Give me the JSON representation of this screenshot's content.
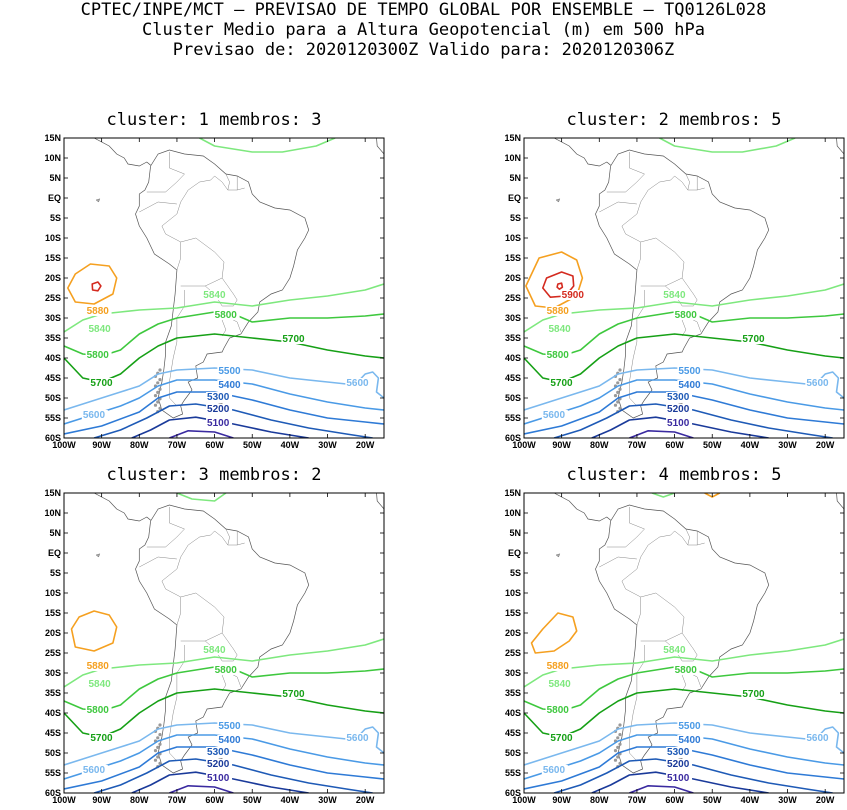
{
  "header": {
    "line1": "CPTEC/INPE/MCT – PREVISAO DE TEMPO GLOBAL POR ENSEMBLE – TQ0126L028",
    "line2": "Cluster Medio para a Altura Geopotencial (m) em 500 hPa",
    "line3": "Previsao de: 2020120300Z   Valido para: 2020120306Z"
  },
  "axes": {
    "lat_labels": [
      "15N",
      "10N",
      "5N",
      "EQ",
      "5S",
      "10S",
      "15S",
      "20S",
      "25S",
      "30S",
      "35S",
      "40S",
      "45S",
      "50S",
      "55S",
      "60S"
    ],
    "lon_labels": [
      "100W",
      "90W",
      "80W",
      "70W",
      "60W",
      "50W",
      "40W",
      "30W",
      "20W"
    ]
  },
  "colors": {
    "c5900": "#d42a1f",
    "c5880": "#f5a020",
    "c5840": "#7ee87e",
    "c5800": "#3ec83e",
    "c5700": "#16a016",
    "c5600": "#7ab8ee",
    "c5500": "#4a9ae6",
    "c5400": "#2e7ad6",
    "c5300": "#1e5ab6",
    "c5200": "#1a3a9a",
    "c5100": "#3a2aa0"
  },
  "panels": [
    {
      "title": "cluster: 1   membros: 3",
      "labels": {
        "c5880": "5880",
        "c5840a": "5840",
        "c5840b": "5840",
        "c5800a": "5800",
        "c5800b": "5800",
        "c5700a": "5700",
        "c5700b": "5700",
        "c5600a": "5600",
        "c5600b": "5600",
        "c5500": "5500",
        "c5400": "5400",
        "c5300": "5300",
        "c5200": "5200",
        "c5100": "5100"
      }
    },
    {
      "title": "cluster: 2   membros: 5",
      "labels": {
        "c5900": "5900",
        "c5880": "5880",
        "c5840a": "5840",
        "c5840b": "5840",
        "c5800a": "5800",
        "c5800b": "5800",
        "c5700a": "5700",
        "c5700b": "5700",
        "c5600a": "5600",
        "c5600b": "5600",
        "c5500": "5500",
        "c5400": "5400",
        "c5300": "5300",
        "c5200": "5200",
        "c5100": "5100"
      }
    },
    {
      "title": "cluster: 3   membros: 2",
      "labels": {
        "c5880": "5880",
        "c5840a": "5840",
        "c5840b": "5840",
        "c5800a": "5800",
        "c5800b": "5800",
        "c5700a": "5700",
        "c5700b": "5700",
        "c5600a": "5600",
        "c5600b": "5600",
        "c5500": "5500",
        "c5400": "5400",
        "c5300": "5300",
        "c5200": "5200",
        "c5100": "5100"
      }
    },
    {
      "title": "cluster: 4   membros: 5",
      "labels": {
        "c5880": "5880",
        "c5840a": "5840",
        "c5840b": "5840",
        "c5800a": "5800",
        "c5800b": "5800",
        "c5700a": "5700",
        "c5700b": "5700",
        "c5600a": "5600",
        "c5600b": "5600",
        "c5500": "5500",
        "c5400": "5400",
        "c5300": "5300",
        "c5200": "5200",
        "c5100": "5100"
      }
    }
  ]
}
